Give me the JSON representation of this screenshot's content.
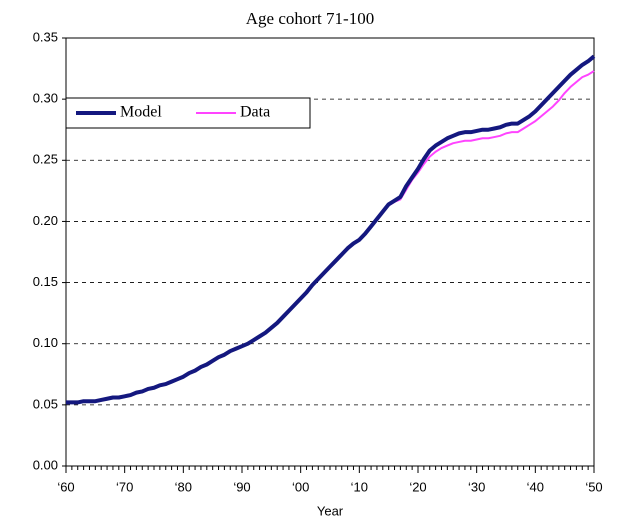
{
  "chart_data": {
    "type": "line",
    "title": "Age cohort 71-100",
    "x_label": "Year",
    "categories": [
      "‘60",
      null,
      null,
      null,
      null,
      null,
      null,
      null,
      null,
      null,
      "‘70",
      null,
      null,
      null,
      null,
      null,
      null,
      null,
      null,
      null,
      "‘80",
      null,
      null,
      null,
      null,
      null,
      null,
      null,
      null,
      null,
      "‘90",
      null,
      null,
      null,
      null,
      null,
      null,
      null,
      null,
      null,
      "‘00",
      null,
      null,
      null,
      null,
      null,
      null,
      null,
      null,
      null,
      "‘10",
      null,
      null,
      null,
      null,
      null,
      null,
      null,
      null,
      null,
      "‘20",
      null,
      null,
      null,
      null,
      null,
      null,
      null,
      null,
      null,
      "‘30",
      null,
      null,
      null,
      null,
      null,
      null,
      null,
      null,
      null,
      "‘40",
      null,
      null,
      null,
      null,
      null,
      null,
      null,
      null,
      null,
      "‘50"
    ],
    "series": [
      {
        "name": "Model",
        "color": "#14187f",
        "values": [
          0.052,
          0.052,
          0.052,
          0.053,
          0.053,
          0.053,
          0.054,
          0.055,
          0.056,
          0.056,
          0.057,
          0.058,
          0.06,
          0.061,
          0.063,
          0.064,
          0.066,
          0.067,
          0.069,
          0.071,
          0.073,
          0.076,
          0.078,
          0.081,
          0.083,
          0.086,
          0.089,
          0.091,
          0.094,
          0.096,
          0.098,
          0.1,
          0.103,
          0.106,
          0.109,
          0.113,
          0.117,
          0.122,
          0.127,
          0.132,
          0.137,
          0.142,
          0.148,
          0.153,
          0.158,
          0.163,
          0.168,
          0.173,
          0.178,
          0.182,
          0.185,
          0.19,
          0.196,
          0.202,
          0.208,
          0.214,
          0.217,
          0.22,
          0.229,
          0.236,
          0.243,
          0.251,
          0.258,
          0.262,
          0.265,
          0.268,
          0.27,
          0.272,
          0.273,
          0.273,
          0.274,
          0.275,
          0.275,
          0.276,
          0.277,
          0.279,
          0.28,
          0.28,
          0.283,
          0.286,
          0.29,
          0.295,
          0.3,
          0.305,
          0.31,
          0.315,
          0.32,
          0.324,
          0.328,
          0.331,
          0.335
        ]
      },
      {
        "name": "Data",
        "color": "#ff44ff",
        "values": [
          0.052,
          0.052,
          0.052,
          0.053,
          0.053,
          0.053,
          0.054,
          0.055,
          0.056,
          0.056,
          0.057,
          0.058,
          0.06,
          0.061,
          0.063,
          0.064,
          0.066,
          0.067,
          0.069,
          0.071,
          0.073,
          0.076,
          0.078,
          0.081,
          0.083,
          0.086,
          0.089,
          0.091,
          0.094,
          0.096,
          0.098,
          0.1,
          0.103,
          0.106,
          0.109,
          0.113,
          0.117,
          0.122,
          0.127,
          0.132,
          0.137,
          0.142,
          0.148,
          0.153,
          0.158,
          0.163,
          0.168,
          0.173,
          0.178,
          0.182,
          0.185,
          0.19,
          0.196,
          0.202,
          0.208,
          0.213,
          0.216,
          0.218,
          0.226,
          0.234,
          0.24,
          0.247,
          0.253,
          0.257,
          0.26,
          0.262,
          0.264,
          0.265,
          0.266,
          0.266,
          0.267,
          0.268,
          0.268,
          0.269,
          0.27,
          0.272,
          0.273,
          0.273,
          0.276,
          0.279,
          0.282,
          0.286,
          0.29,
          0.294,
          0.299,
          0.305,
          0.31,
          0.314,
          0.318,
          0.32,
          0.323
        ]
      }
    ],
    "ylim": [
      0,
      0.35
    ],
    "yticks": [
      {
        "value": 0,
        "label": "0.00"
      },
      {
        "value": 0.05,
        "label": "0.05"
      },
      {
        "value": 0.1,
        "label": "0.10"
      },
      {
        "value": 0.15,
        "label": "0.15"
      },
      {
        "value": 0.2,
        "label": "0.20"
      },
      {
        "value": 0.25,
        "label": "0.25"
      },
      {
        "value": 0.3,
        "label": "0.30"
      },
      {
        "value": 0.35,
        "label": "0.35"
      }
    ],
    "grid": true,
    "legend": "left"
  }
}
